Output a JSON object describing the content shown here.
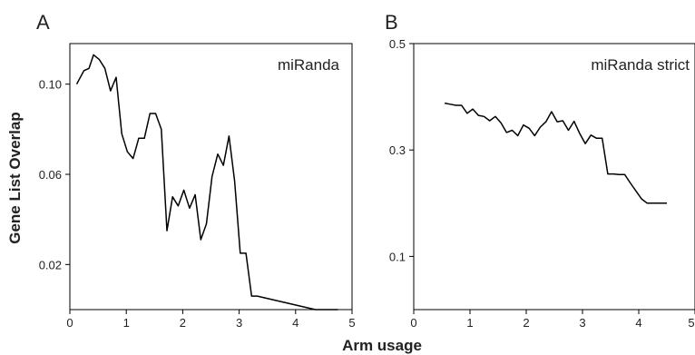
{
  "chart_data": [
    {
      "type": "line",
      "panel_label": "A",
      "series_label": "miRanda",
      "xlim": [
        0,
        5
      ],
      "ylim": [
        0,
        0.118
      ],
      "xticks": [
        "0",
        "1",
        "2",
        "3",
        "4",
        "5"
      ],
      "yticks": [
        {
          "value": 0.02,
          "label": "0.02"
        },
        {
          "value": 0.06,
          "label": "0.06"
        },
        {
          "value": 0.1,
          "label": "0.10"
        }
      ],
      "x": [
        0.12,
        0.25,
        0.34,
        0.42,
        0.52,
        0.62,
        0.72,
        0.82,
        0.92,
        1.02,
        1.12,
        1.22,
        1.32,
        1.42,
        1.52,
        1.62,
        1.72,
        1.82,
        1.92,
        2.02,
        2.12,
        2.22,
        2.32,
        2.42,
        2.52,
        2.62,
        2.72,
        2.82,
        2.92,
        3.02,
        3.12,
        3.22,
        3.32,
        4.35,
        4.75
      ],
      "y": [
        0.1,
        0.106,
        0.107,
        0.113,
        0.111,
        0.107,
        0.097,
        0.103,
        0.078,
        0.07,
        0.067,
        0.076,
        0.076,
        0.087,
        0.087,
        0.08,
        0.035,
        0.05,
        0.046,
        0.053,
        0.045,
        0.051,
        0.031,
        0.038,
        0.059,
        0.069,
        0.064,
        0.077,
        0.057,
        0.025,
        0.025,
        0.006,
        0.006,
        0.0,
        0.0
      ]
    },
    {
      "type": "line",
      "panel_label": "B",
      "series_label": "miRanda strict",
      "xlim": [
        0,
        5
      ],
      "ylim": [
        0,
        0.5
      ],
      "xticks": [
        "0",
        "1",
        "2",
        "3",
        "4",
        "5"
      ],
      "yticks": [
        {
          "value": 0.1,
          "label": "0.1"
        },
        {
          "value": 0.3,
          "label": "0.3"
        },
        {
          "value": 0.5,
          "label": "0.5"
        }
      ],
      "x": [
        0.55,
        0.65,
        0.75,
        0.85,
        0.95,
        1.05,
        1.15,
        1.25,
        1.35,
        1.45,
        1.55,
        1.65,
        1.75,
        1.85,
        1.95,
        2.05,
        2.15,
        2.25,
        2.35,
        2.45,
        2.55,
        2.65,
        2.75,
        2.85,
        2.95,
        3.05,
        3.15,
        3.25,
        3.35,
        3.45,
        3.55,
        3.65,
        3.75,
        3.85,
        3.95,
        4.05,
        4.15,
        4.25,
        4.35,
        4.5
      ],
      "y": [
        0.388,
        0.386,
        0.384,
        0.384,
        0.369,
        0.377,
        0.365,
        0.363,
        0.355,
        0.363,
        0.351,
        0.333,
        0.337,
        0.327,
        0.347,
        0.341,
        0.327,
        0.343,
        0.353,
        0.372,
        0.353,
        0.355,
        0.337,
        0.354,
        0.331,
        0.312,
        0.328,
        0.322,
        0.322,
        0.255,
        0.255,
        0.254,
        0.254,
        0.238,
        0.223,
        0.208,
        0.2,
        0.2,
        0.2,
        0.2
      ]
    }
  ],
  "axes": {
    "y_title": "Gene List Overlap",
    "x_title": "Arm usage"
  }
}
